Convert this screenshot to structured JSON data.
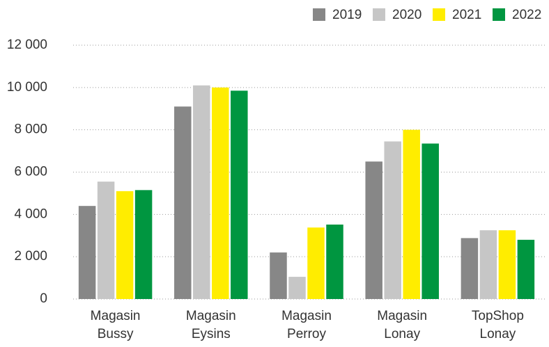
{
  "chart_data": {
    "type": "bar",
    "categories": [
      "Magasin Bussy",
      "Magasin Eysins",
      "Magasin Perroy",
      "Magasin Lonay",
      "TopShop Lonay"
    ],
    "series": [
      {
        "name": "2019",
        "color": "#878787",
        "values": [
          4400,
          9100,
          2200,
          6500,
          2880
        ]
      },
      {
        "name": "2020",
        "color": "#c6c6c6",
        "values": [
          5550,
          10100,
          1050,
          7450,
          3250
        ]
      },
      {
        "name": "2021",
        "color": "#ffed00",
        "values": [
          5100,
          10000,
          3380,
          8000,
          3250
        ]
      },
      {
        "name": "2022",
        "color": "#009640",
        "values": [
          5150,
          9850,
          3520,
          7350,
          2800
        ]
      }
    ],
    "ylim": [
      0,
      12000
    ],
    "yticks": [
      0,
      {
        "value": 2000,
        "label": "2 000"
      },
      {
        "value": 4000,
        "label": "4 000"
      },
      {
        "value": 6000,
        "label": "6 000"
      },
      {
        "value": 8000,
        "label": "8 000"
      },
      {
        "value": 10000,
        "label": "10 000"
      },
      {
        "value": 12000,
        "label": "12 000"
      }
    ],
    "grid": true,
    "legend": "top-right"
  }
}
